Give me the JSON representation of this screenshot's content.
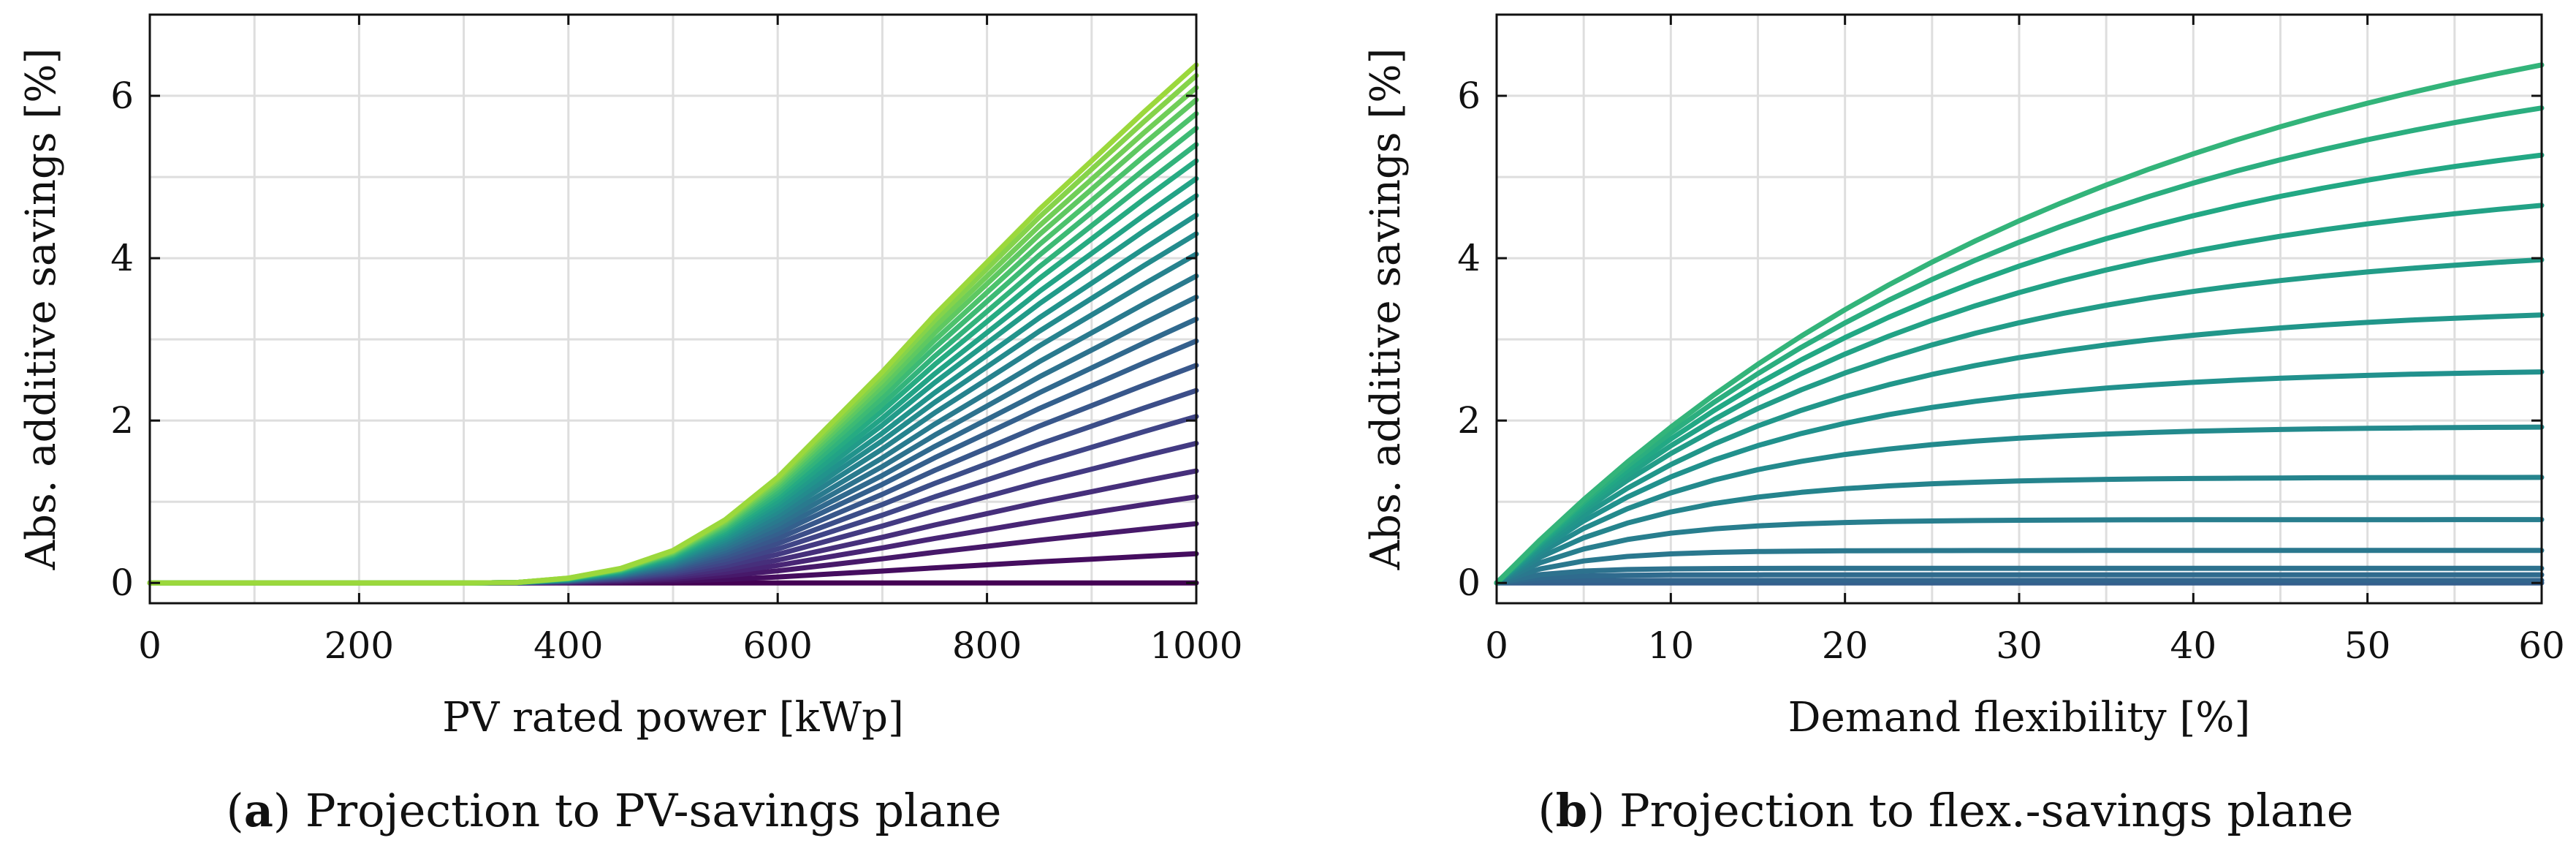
{
  "chart_data": [
    {
      "type": "line",
      "id": "a",
      "caption_letter": "a",
      "caption_text": "Projection to PV-savings plane",
      "xlabel": "PV rated power [kWp]",
      "ylabel": "Abs. additive savings [%]",
      "xlim": [
        0,
        1000
      ],
      "ylim": [
        -0.25,
        7
      ],
      "xticks": [
        0,
        200,
        400,
        600,
        800,
        1000
      ],
      "yticks": [
        0,
        2,
        4,
        6
      ],
      "grid": true,
      "colormap": "viridis",
      "color_range": [
        0.0,
        0.85
      ],
      "x": [
        0,
        100,
        200,
        300,
        350,
        400,
        450,
        500,
        550,
        600,
        650,
        700,
        750,
        800,
        850,
        900,
        950,
        1000
      ],
      "base_curve": [
        0,
        0,
        0,
        0,
        0.005,
        0.06,
        0.18,
        0.4,
        0.78,
        1.3,
        1.95,
        2.6,
        3.3,
        3.95,
        4.6,
        5.2,
        5.8,
        6.38
      ],
      "series_final_values": [
        0.0,
        0.36,
        0.73,
        1.06,
        1.38,
        1.72,
        2.05,
        2.37,
        2.68,
        2.98,
        3.25,
        3.52,
        3.78,
        4.05,
        4.3,
        4.53,
        4.77,
        4.98,
        5.2,
        5.4,
        5.6,
        5.78,
        5.95,
        6.1,
        6.25,
        6.38
      ]
    },
    {
      "type": "line",
      "id": "b",
      "caption_letter": "b",
      "caption_text": "Projection to flex.-savings plane",
      "xlabel": "Demand flexibility [%]",
      "ylabel": "Abs. additive savings [%]",
      "xlim": [
        0,
        60
      ],
      "ylim": [
        -0.25,
        7
      ],
      "xticks": [
        0,
        10,
        20,
        30,
        40,
        50,
        60
      ],
      "yticks": [
        0,
        2,
        4,
        6
      ],
      "grid": true,
      "colormap": "viridis",
      "color_range": [
        0.3,
        0.65
      ],
      "x": [
        0,
        2.5,
        5,
        7.5,
        10,
        12.5,
        15,
        17.5,
        20,
        22.5,
        25,
        27.5,
        30,
        32.5,
        35,
        37.5,
        40,
        42.5,
        45,
        47.5,
        50,
        52.5,
        55,
        57.5,
        60
      ],
      "series_final_values": [
        0.0,
        0.03,
        0.1,
        0.18,
        0.4,
        0.78,
        1.3,
        1.92,
        2.6,
        3.3,
        3.98,
        4.65,
        5.27,
        5.85,
        6.38
      ],
      "series_initial_slopes": [
        0.0,
        0.03,
        0.04,
        0.06,
        0.09,
        0.12,
        0.145,
        0.165,
        0.18,
        0.19,
        0.2,
        0.205,
        0.21,
        0.215,
        0.22
      ]
    }
  ]
}
